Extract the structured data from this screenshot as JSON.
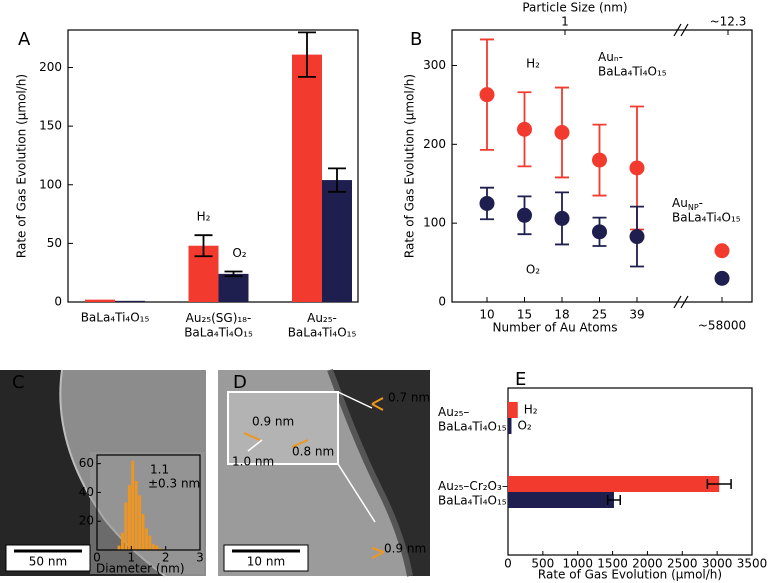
{
  "chart_data": [
    {
      "type": "bar",
      "panel": "A",
      "ylabel": "Rate of Gas Evolution (μmol/h)",
      "categories": [
        "BaLa₄Ti₄O₁₅",
        "Au₂₅(SG)₁₈-\nBaLa₄Ti₄O₁₅",
        "Au₂₅-\nBaLa₄Ti₄O₁₅"
      ],
      "series": [
        {
          "name": "H₂",
          "color": "#f23b2e",
          "values": [
            2,
            48,
            211
          ],
          "errors": [
            null,
            9,
            19
          ]
        },
        {
          "name": "O₂",
          "color": "#1f1f4f",
          "values": [
            1,
            24,
            104
          ],
          "errors": [
            null,
            2,
            10
          ]
        }
      ],
      "ylim": [
        0,
        232
      ],
      "yticks": [
        0,
        50,
        100,
        150,
        200
      ]
    },
    {
      "type": "scatter",
      "panel": "B",
      "ylabel": "Rate of Gas Evolution (μmol/h)",
      "xlabel": "Number of Au Atoms",
      "top_label": "Particle Size (nm)",
      "top_ticks": [
        "1",
        "~12.3"
      ],
      "categories": [
        "10",
        "15",
        "18",
        "25",
        "39",
        "~58000"
      ],
      "series": [
        {
          "name": "H₂",
          "color": "#f23b2e",
          "values": [
            263,
            219,
            215,
            180,
            170,
            65
          ],
          "errors": [
            70,
            47,
            57,
            45,
            78,
            null
          ]
        },
        {
          "name": "O₂",
          "color": "#1f1f4f",
          "values": [
            125,
            110,
            106,
            89,
            83,
            30
          ],
          "errors": [
            20,
            24,
            33,
            18,
            38,
            null
          ]
        }
      ],
      "ylim": [
        0,
        345
      ],
      "yticks": [
        0,
        100,
        200,
        300
      ],
      "annotations": [
        "Auₙ-\nBaLa₄Ti₄O₁₅",
        {
          "base": "Au",
          "sub": "NP",
          "rest": "-\nBaLa₄Ti₄O₁₅"
        }
      ]
    },
    {
      "type": "histogram",
      "panel": "C",
      "scale_bar": "50 nm",
      "xlabel": "Diameter (nm)",
      "bins": [
        0.6,
        0.7,
        0.8,
        0.9,
        1.0,
        1.1,
        1.2,
        1.3,
        1.4,
        1.5,
        1.6,
        1.7,
        1.8,
        1.9
      ],
      "counts": [
        3,
        12,
        33,
        45,
        62,
        48,
        38,
        25,
        15,
        10,
        4,
        3,
        1
      ],
      "color": "#f0961e",
      "xlim": [
        0,
        3
      ],
      "xticks": [
        0,
        1,
        2,
        3
      ],
      "ylim": [
        0,
        66
      ],
      "yticks": [
        20,
        40,
        60
      ],
      "annotations": [
        "1.1",
        "±0.3 nm"
      ]
    },
    {
      "type": "image",
      "panel": "D",
      "scale_bar": "10 nm",
      "annotations": [
        "0.7 nm",
        "0.9 nm",
        "0.9 nm",
        "0.8 nm",
        "1.0 nm"
      ]
    },
    {
      "type": "barh",
      "panel": "E",
      "xlabel": "Rate of Gas Evolution (μmol/h)",
      "categories": [
        "Au₂₅–\nBaLa₄Ti₄O₁₅",
        "Au₂₅–Cr₂O₃–\nBaLa₄Ti₄O₁₅"
      ],
      "series": [
        {
          "name": "H₂",
          "color": "#f23b2e",
          "values": [
            140,
            3030
          ],
          "errors": [
            null,
            170
          ]
        },
        {
          "name": "O₂",
          "color": "#1f1f4f",
          "values": [
            50,
            1520
          ],
          "errors": [
            null,
            90
          ]
        }
      ],
      "xlim": [
        0,
        3500
      ],
      "xticks": [
        0,
        500,
        1000,
        1500,
        2000,
        2500,
        3000,
        3500
      ]
    }
  ]
}
